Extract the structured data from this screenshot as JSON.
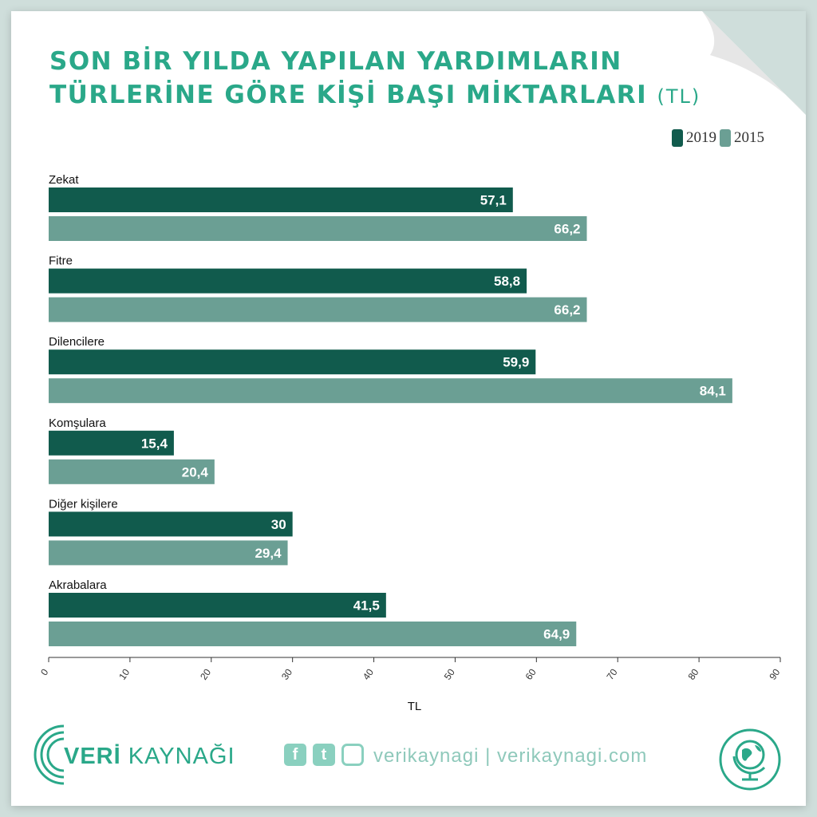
{
  "header": {
    "title_line1": "SON BİR YILDA YAPILAN YARDIMLARIN",
    "title_line2": "TÜRLERİNE GÖRE KİŞİ BAŞI MİKTARLARI",
    "title_unit": "(TL)"
  },
  "colors": {
    "series_2019": "#115b4d",
    "series_2015": "#6b9f94",
    "accent": "#2aa889"
  },
  "chart_data": {
    "type": "bar",
    "orientation": "horizontal",
    "categories": [
      "Zekat",
      "Fitre",
      "Dilencilere",
      "Komşulara",
      "Diğer kişilere",
      "Akrabalara"
    ],
    "series": [
      {
        "name": "2019",
        "values": [
          57.1,
          58.8,
          59.9,
          15.4,
          30,
          41.5
        ],
        "labels": [
          "57,1",
          "58,8",
          "59,9",
          "15,4",
          "30",
          "41,5"
        ]
      },
      {
        "name": "2015",
        "values": [
          66.2,
          66.2,
          84.1,
          20.4,
          29.4,
          64.9
        ],
        "labels": [
          "66,2",
          "66,2",
          "84,1",
          "20,4",
          "29,4",
          "64,9"
        ]
      }
    ],
    "xlim": [
      0,
      90
    ],
    "xticks": [
      0,
      10,
      20,
      30,
      40,
      50,
      60,
      70,
      80,
      90
    ],
    "xlabel": "TL",
    "legend_position": "top-right",
    "grid": false
  },
  "footer": {
    "brand_bold": "VERİ",
    "brand_rest": " KAYNAĞI",
    "social_text": "verikaynagi | verikaynagi.com",
    "social_icons": [
      "facebook-icon",
      "twitter-icon",
      "instagram-icon"
    ]
  }
}
